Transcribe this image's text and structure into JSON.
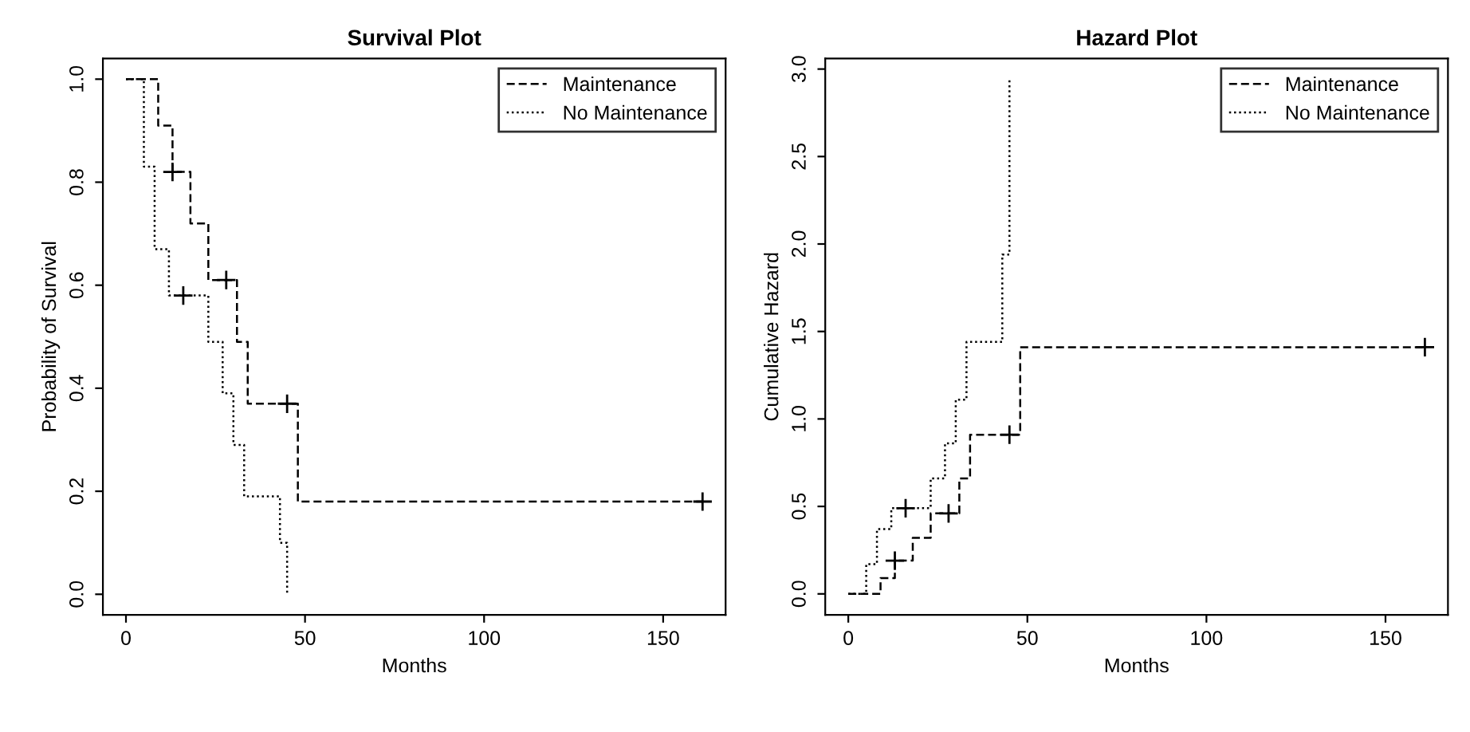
{
  "chart_data": [
    {
      "type": "step",
      "title": "Survival Plot",
      "xlabel": "Months",
      "ylabel": "Probability of Survival",
      "xlim": [
        -6.44,
        167.44
      ],
      "ylim": [
        -0.04,
        1.04
      ],
      "xticks": [
        0,
        50,
        100,
        150
      ],
      "yticks": [
        {
          "value": 0,
          "label": "0.0"
        },
        {
          "value": 0.2,
          "label": "0.2"
        },
        {
          "value": 0.4,
          "label": "0.4"
        },
        {
          "value": 0.6,
          "label": "0.6"
        },
        {
          "value": 0.8,
          "label": "0.8"
        },
        {
          "value": 1,
          "label": "1.0"
        }
      ],
      "grid": false,
      "legend": "top right",
      "series": [
        {
          "name": "Maintenance",
          "color": "#000000",
          "line_style": "dashed",
          "x": [
            0,
            9,
            13,
            18,
            23,
            31,
            34,
            48,
            161
          ],
          "values": [
            1,
            0.91,
            0.82,
            0.72,
            0.61,
            0.49,
            0.37,
            0.18,
            0.18
          ]
        },
        {
          "name": "No Maintenance",
          "color": "#000000",
          "line_style": "dotted",
          "x": [
            0,
            5,
            8,
            12,
            23,
            27,
            30,
            33,
            43,
            45
          ],
          "values": [
            1,
            0.83,
            0.67,
            0.58,
            0.49,
            0.39,
            0.29,
            0.19,
            0.1,
            0
          ]
        },
        {
          "type": "scatter",
          "marker": "cross",
          "color": "#000000",
          "x": [
            13,
            28,
            45,
            161
          ],
          "values": [
            0.82,
            0.61,
            0.37,
            0.18
          ]
        },
        {
          "type": "scatter",
          "marker": "cross",
          "color": "#000000",
          "x": [
            16
          ],
          "values": [
            0.58
          ]
        }
      ]
    },
    {
      "type": "step",
      "title": "Hazard Plot",
      "xlabel": "Months",
      "ylabel": "Cumulative Hazard",
      "xlim": [
        -6.44,
        167.44
      ],
      "ylim": [
        -0.12,
        3.06
      ],
      "xticks": [
        0,
        50,
        100,
        150
      ],
      "yticks": [
        {
          "value": 0,
          "label": "0.0"
        },
        {
          "value": 0.5,
          "label": "0.5"
        },
        {
          "value": 1,
          "label": "1.0"
        },
        {
          "value": 1.5,
          "label": "1.5"
        },
        {
          "value": 2,
          "label": "2.0"
        },
        {
          "value": 2.5,
          "label": "2.5"
        },
        {
          "value": 3,
          "label": "3.0"
        }
      ],
      "grid": false,
      "legend": "top right",
      "series": [
        {
          "name": "Maintenance",
          "color": "#000000",
          "line_style": "dashed",
          "x": [
            0,
            9,
            13,
            18,
            23,
            31,
            34,
            48,
            161
          ],
          "values": [
            0,
            0.09,
            0.19,
            0.32,
            0.46,
            0.66,
            0.91,
            1.41,
            1.41
          ]
        },
        {
          "name": "No Maintenance",
          "color": "#000000",
          "line_style": "dotted",
          "x": [
            0,
            5,
            8,
            12,
            23,
            27,
            30,
            33,
            43,
            45
          ],
          "values": [
            0,
            0.17,
            0.37,
            0.49,
            0.66,
            0.86,
            1.11,
            1.44,
            1.94,
            2.94
          ]
        },
        {
          "type": "scatter",
          "marker": "cross",
          "color": "#000000",
          "x": [
            13,
            28,
            45,
            161
          ],
          "values": [
            0.19,
            0.46,
            0.91,
            1.41
          ]
        },
        {
          "type": "scatter",
          "marker": "cross",
          "color": "#000000",
          "x": [
            16
          ],
          "values": [
            0.49
          ]
        }
      ]
    }
  ]
}
